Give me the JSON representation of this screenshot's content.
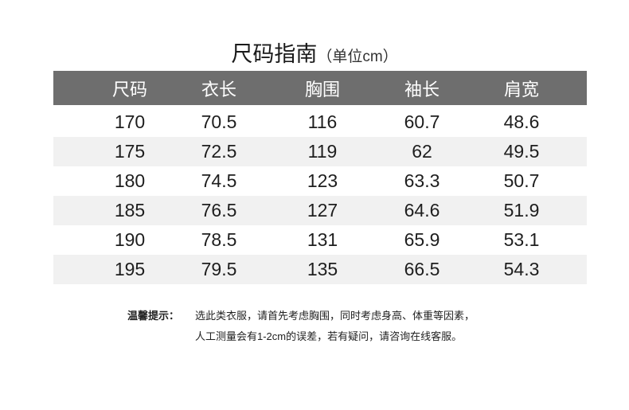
{
  "title": {
    "main": "尺码指南",
    "unit": "（单位cm）"
  },
  "table": {
    "headers": [
      "尺码",
      "衣长",
      "胸围",
      "袖长",
      "肩宽"
    ],
    "rows": [
      [
        "170",
        "70.5",
        "116",
        "60.7",
        "48.6"
      ],
      [
        "175",
        "72.5",
        "119",
        "62",
        "49.5"
      ],
      [
        "180",
        "74.5",
        "123",
        "63.3",
        "50.7"
      ],
      [
        "185",
        "76.5",
        "127",
        "64.6",
        "51.9"
      ],
      [
        "190",
        "78.5",
        "131",
        "65.9",
        "53.1"
      ],
      [
        "195",
        "79.5",
        "135",
        "66.5",
        "54.3"
      ]
    ],
    "header_color": "#6e6e6e",
    "alt_row_color": "#f1f1f1"
  },
  "notes": {
    "label": "温馨提示：",
    "line1": "选此类衣服，请首先考虑胸围，同时考虑身高、体重等因素，",
    "line2": "人工测量会有1-2cm的误差，若有疑问，请咨询在线客服。"
  }
}
